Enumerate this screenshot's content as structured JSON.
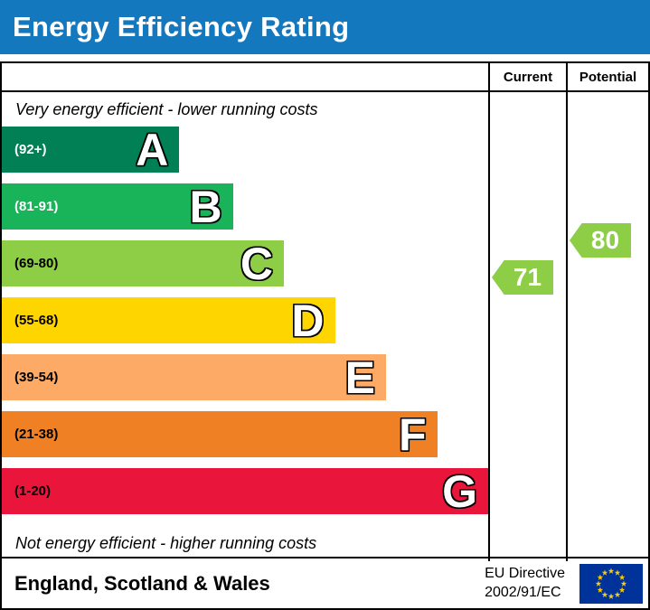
{
  "colors": {
    "title_bar_bg": "#1478be",
    "border": "#000000"
  },
  "title": "Energy Efficiency Rating",
  "table": {
    "columns": {
      "current": "Current",
      "potential": "Potential"
    }
  },
  "captions": {
    "top": "Very energy efficient - lower running costs",
    "bottom": "Not energy efficient - higher running costs"
  },
  "chart_data": {
    "type": "bar",
    "orientation": "horizontal",
    "title": "Energy Efficiency Rating",
    "scale": [
      1,
      100
    ],
    "bands": [
      {
        "letter": "A",
        "range": "(92+)",
        "min": 92,
        "max": 100,
        "color": "#008054",
        "label_color": "#ffffff",
        "width_pct": 36.5
      },
      {
        "letter": "B",
        "range": "(81-91)",
        "min": 81,
        "max": 91,
        "color": "#19b459",
        "label_color": "#ffffff",
        "width_pct": 47.5
      },
      {
        "letter": "C",
        "range": "(69-80)",
        "min": 69,
        "max": 80,
        "color": "#8dce46",
        "label_color": "#000000",
        "width_pct": 58
      },
      {
        "letter": "D",
        "range": "(55-68)",
        "min": 55,
        "max": 68,
        "color": "#ffd500",
        "label_color": "#000000",
        "width_pct": 68.5
      },
      {
        "letter": "E",
        "range": "(39-54)",
        "min": 39,
        "max": 54,
        "color": "#fcaa65",
        "label_color": "#000000",
        "width_pct": 79
      },
      {
        "letter": "F",
        "range": "(21-38)",
        "min": 21,
        "max": 38,
        "color": "#ef8023",
        "label_color": "#000000",
        "width_pct": 89.5
      },
      {
        "letter": "G",
        "range": "(1-20)",
        "min": 1,
        "max": 20,
        "color": "#e9153b",
        "label_color": "#000000",
        "width_pct": 100
      }
    ],
    "current": {
      "value": 71,
      "band": "C",
      "color": "#8dce46"
    },
    "potential": {
      "value": 80,
      "band": "C",
      "color": "#8dce46"
    }
  },
  "footer": {
    "region": "England, Scotland & Wales",
    "directive": {
      "line1": "EU Directive",
      "line2": "2002/91/EC"
    },
    "flag": {
      "name": "eu-flag",
      "background": "#003399",
      "star_color": "#ffcc00"
    }
  }
}
